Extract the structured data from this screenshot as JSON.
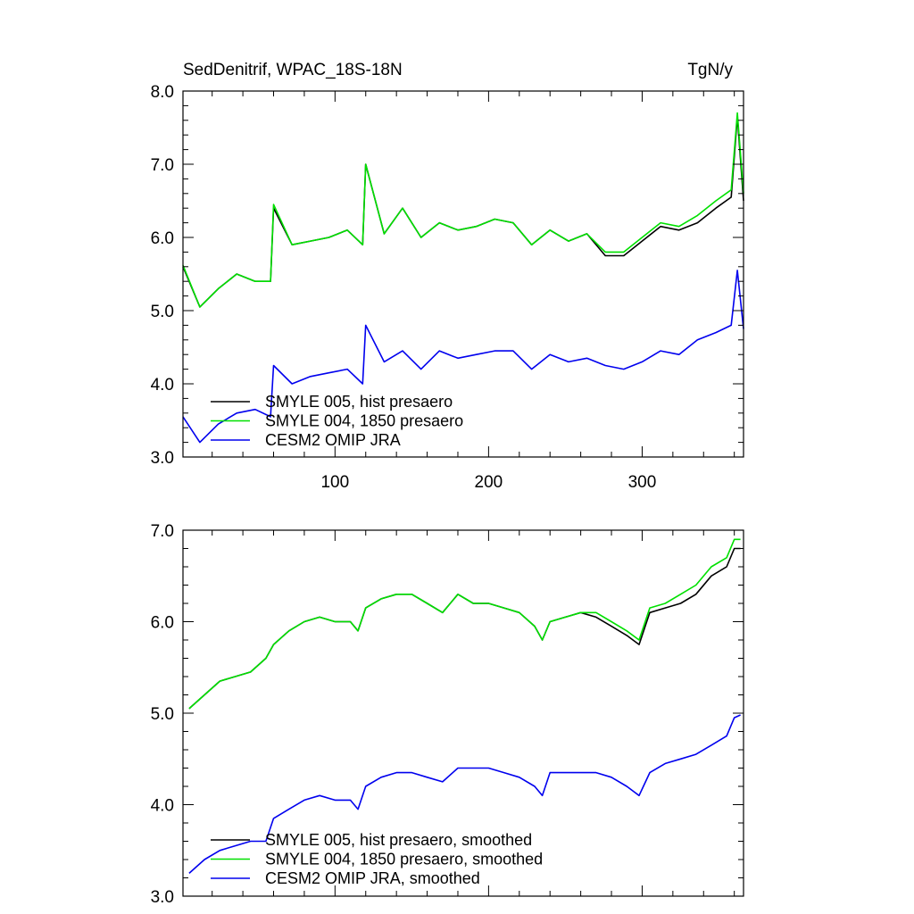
{
  "chart_data": [
    {
      "type": "line",
      "title_left": "SedDenitrif, WPAC_18S-18N",
      "title_right": "TgN/y",
      "xlabel": "",
      "ylabel": "",
      "xlim": [
        1,
        366
      ],
      "ylim": [
        3.0,
        8.0
      ],
      "yticks": [
        3.0,
        4.0,
        5.0,
        6.0,
        7.0,
        8.0
      ],
      "ytick_labels": [
        "3.0",
        "4.0",
        "5.0",
        "6.0",
        "7.0",
        "8.0"
      ],
      "xticks": [
        100,
        200,
        300
      ],
      "xtick_labels": [
        "100",
        "200",
        "300"
      ],
      "legend_position": "bottom-left",
      "series": [
        {
          "name": "SMYLE 005, hist presaero",
          "color": "#000000",
          "x": [
            1,
            12,
            24,
            36,
            48,
            58,
            60,
            72,
            84,
            96,
            108,
            118,
            120,
            132,
            144,
            156,
            168,
            180,
            192,
            204,
            216,
            228,
            240,
            252,
            264,
            276,
            288,
            300,
            312,
            324,
            336,
            348,
            358,
            362,
            366
          ],
          "values": [
            5.6,
            5.05,
            5.3,
            5.5,
            5.4,
            5.4,
            6.4,
            5.9,
            5.95,
            6.0,
            6.1,
            5.9,
            7.0,
            6.05,
            6.4,
            6.0,
            6.2,
            6.1,
            6.15,
            6.25,
            6.2,
            5.9,
            6.1,
            5.95,
            6.05,
            5.75,
            5.75,
            5.95,
            6.15,
            6.1,
            6.2,
            6.4,
            6.55,
            7.65,
            6.5
          ]
        },
        {
          "name": "SMYLE 004, 1850 presaero",
          "color": "#00e000",
          "x": [
            1,
            12,
            24,
            36,
            48,
            58,
            60,
            72,
            84,
            96,
            108,
            118,
            120,
            132,
            144,
            156,
            168,
            180,
            192,
            204,
            216,
            228,
            240,
            252,
            264,
            276,
            288,
            300,
            312,
            324,
            336,
            348,
            358,
            362,
            366
          ],
          "values": [
            5.62,
            5.05,
            5.3,
            5.5,
            5.4,
            5.4,
            6.45,
            5.9,
            5.95,
            6.0,
            6.1,
            5.9,
            7.0,
            6.05,
            6.4,
            6.0,
            6.2,
            6.1,
            6.15,
            6.25,
            6.2,
            5.9,
            6.1,
            5.95,
            6.05,
            5.8,
            5.8,
            6.0,
            6.2,
            6.15,
            6.3,
            6.5,
            6.65,
            7.7,
            6.6
          ]
        },
        {
          "name": "CESM2 OMIP JRA",
          "color": "#0000ee",
          "x": [
            1,
            12,
            24,
            36,
            48,
            58,
            60,
            72,
            84,
            96,
            108,
            118,
            120,
            132,
            144,
            156,
            168,
            180,
            192,
            204,
            216,
            228,
            240,
            252,
            264,
            276,
            288,
            300,
            312,
            324,
            336,
            348,
            358,
            362,
            366
          ],
          "values": [
            3.55,
            3.2,
            3.45,
            3.6,
            3.65,
            3.55,
            4.25,
            4.0,
            4.1,
            4.15,
            4.2,
            4.0,
            4.8,
            4.3,
            4.45,
            4.2,
            4.45,
            4.35,
            4.4,
            4.45,
            4.45,
            4.2,
            4.4,
            4.3,
            4.35,
            4.25,
            4.2,
            4.3,
            4.45,
            4.4,
            4.6,
            4.7,
            4.8,
            5.55,
            4.75
          ]
        }
      ]
    },
    {
      "type": "line",
      "title_left": "",
      "title_right": "",
      "xlabel": "",
      "ylabel": "",
      "xlim": [
        1,
        366
      ],
      "ylim": [
        3.0,
        7.0
      ],
      "yticks": [
        3.0,
        4.0,
        5.0,
        6.0,
        7.0
      ],
      "ytick_labels": [
        "3.0",
        "4.0",
        "5.0",
        "6.0",
        "7.0"
      ],
      "xticks": [
        100,
        200,
        300
      ],
      "xtick_labels": [],
      "legend_position": "bottom-left",
      "series": [
        {
          "name": "SMYLE 005, hist presaero, smoothed",
          "color": "#000000",
          "x": [
            5,
            15,
            25,
            35,
            45,
            55,
            60,
            70,
            80,
            90,
            100,
            110,
            115,
            120,
            130,
            140,
            150,
            160,
            170,
            180,
            190,
            200,
            210,
            220,
            230,
            235,
            240,
            250,
            260,
            270,
            280,
            290,
            298,
            305,
            315,
            325,
            335,
            345,
            355,
            360,
            364
          ],
          "values": [
            5.05,
            5.2,
            5.35,
            5.4,
            5.45,
            5.6,
            5.75,
            5.9,
            6.0,
            6.05,
            6.0,
            6.0,
            5.9,
            6.15,
            6.25,
            6.3,
            6.3,
            6.2,
            6.1,
            6.3,
            6.2,
            6.2,
            6.15,
            6.1,
            5.95,
            5.8,
            6.0,
            6.05,
            6.1,
            6.05,
            5.95,
            5.85,
            5.75,
            6.1,
            6.15,
            6.2,
            6.3,
            6.5,
            6.6,
            6.8,
            6.8
          ]
        },
        {
          "name": "SMYLE 004, 1850 presaero, smoothed",
          "color": "#00e000",
          "x": [
            5,
            15,
            25,
            35,
            45,
            55,
            60,
            70,
            80,
            90,
            100,
            110,
            115,
            120,
            130,
            140,
            150,
            160,
            170,
            180,
            190,
            200,
            210,
            220,
            230,
            235,
            240,
            250,
            260,
            270,
            280,
            290,
            298,
            305,
            315,
            325,
            335,
            345,
            355,
            360,
            364
          ],
          "values": [
            5.05,
            5.2,
            5.35,
            5.4,
            5.45,
            5.6,
            5.75,
            5.9,
            6.0,
            6.05,
            6.0,
            6.0,
            5.9,
            6.15,
            6.25,
            6.3,
            6.3,
            6.2,
            6.1,
            6.3,
            6.2,
            6.2,
            6.15,
            6.1,
            5.95,
            5.8,
            6.0,
            6.05,
            6.1,
            6.1,
            6.0,
            5.9,
            5.8,
            6.15,
            6.2,
            6.3,
            6.4,
            6.6,
            6.7,
            6.9,
            6.9
          ]
        },
        {
          "name": "CESM2 OMIP JRA, smoothed",
          "color": "#0000ee",
          "x": [
            5,
            15,
            25,
            35,
            45,
            55,
            60,
            70,
            80,
            90,
            100,
            110,
            115,
            120,
            130,
            140,
            150,
            160,
            170,
            180,
            190,
            200,
            210,
            220,
            230,
            235,
            240,
            250,
            260,
            270,
            280,
            290,
            298,
            305,
            315,
            325,
            335,
            345,
            355,
            360,
            364
          ],
          "values": [
            3.25,
            3.4,
            3.5,
            3.55,
            3.6,
            3.6,
            3.85,
            3.95,
            4.05,
            4.1,
            4.05,
            4.05,
            3.95,
            4.2,
            4.3,
            4.35,
            4.35,
            4.3,
            4.25,
            4.4,
            4.4,
            4.4,
            4.35,
            4.3,
            4.2,
            4.1,
            4.35,
            4.35,
            4.35,
            4.35,
            4.3,
            4.2,
            4.1,
            4.35,
            4.45,
            4.5,
            4.55,
            4.65,
            4.75,
            4.95,
            4.98
          ]
        }
      ]
    }
  ]
}
